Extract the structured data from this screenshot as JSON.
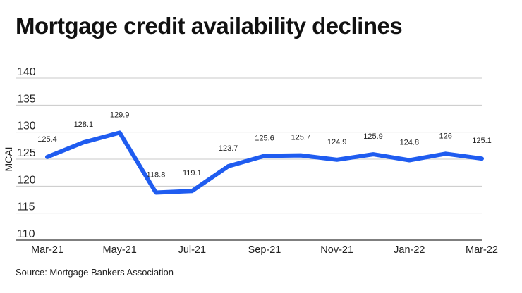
{
  "title": "Mortgage credit availability declines",
  "source": "Source: Mortgage Bankers Association",
  "chart_data": {
    "type": "line",
    "title": "Mortgage credit availability declines",
    "xlabel": "",
    "ylabel": "MCAI",
    "x": [
      "Mar-21",
      "Apr-21",
      "May-21",
      "Jun-21",
      "Jul-21",
      "Aug-21",
      "Sep-21",
      "Oct-21",
      "Nov-21",
      "Dec-21",
      "Jan-22",
      "Feb-22",
      "Mar-22"
    ],
    "xtick_labels": [
      "Mar-21",
      "May-21",
      "Jul-21",
      "Sep-21",
      "Nov-21",
      "Jan-22",
      "Mar-22"
    ],
    "series": [
      {
        "values": [
          125.4,
          128.1,
          129.9,
          118.8,
          119.1,
          123.7,
          125.6,
          125.7,
          124.9,
          125.9,
          124.8,
          126,
          125.1
        ]
      }
    ],
    "data_labels": [
      "125.4",
      "128.1",
      "129.9",
      "118.8",
      "119.1",
      "123.7",
      "125.6",
      "125.7",
      "124.9",
      "125.9",
      "124.8",
      "126",
      "125.1"
    ],
    "ylim": [
      110,
      140
    ],
    "yticks": [
      110,
      115,
      120,
      125,
      130,
      135,
      140
    ],
    "grid": "horizontal",
    "line_color": "#1f5cf0"
  }
}
